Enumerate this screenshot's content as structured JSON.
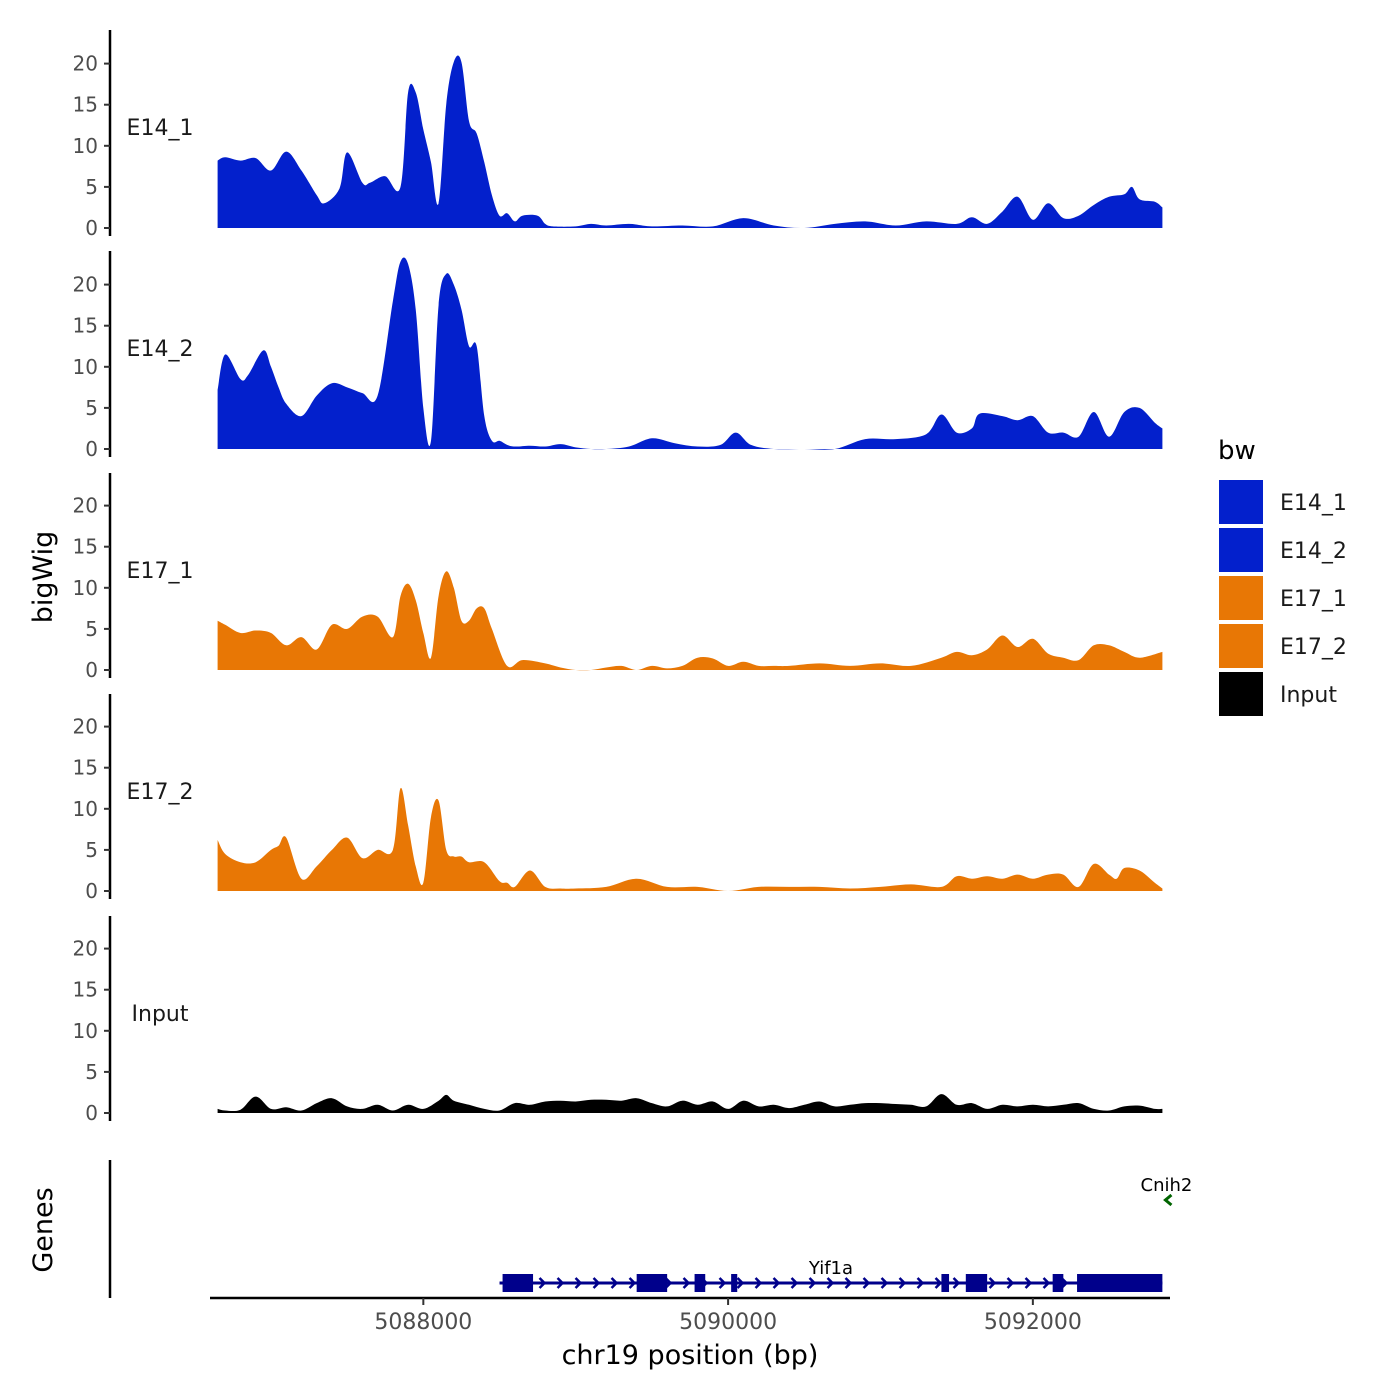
{
  "chart_data": {
    "type": "area",
    "title": "",
    "xlabel": "chr19 position (bp)",
    "ylabel_tracks": "bigWig",
    "ylabel_genes": "Genes",
    "xlim": [
      5086600,
      5092900
    ],
    "x_ticks": [
      5088000,
      5090000,
      5092000
    ],
    "x_tick_labels": [
      "5088000",
      "5090000",
      "5092000"
    ],
    "ylim": [
      0,
      24
    ],
    "y_ticks": [
      0,
      5,
      10,
      15,
      20
    ],
    "y_tick_labels": [
      "0",
      "5",
      "10",
      "15",
      "20"
    ],
    "legend": {
      "title": "bw",
      "placement": "right",
      "entries": [
        {
          "name": "E14_1",
          "color": "#0320CC"
        },
        {
          "name": "E14_2",
          "color": "#0320CC"
        },
        {
          "name": "E17_1",
          "color": "#E87705"
        },
        {
          "name": "E17_2",
          "color": "#E87705"
        },
        {
          "name": "Input",
          "color": "#000000"
        }
      ]
    },
    "series": [
      {
        "name": "E14_1",
        "color": "#0320CC",
        "x": [
          5086650,
          5086700,
          5086800,
          5086900,
          5087000,
          5087100,
          5087200,
          5087300,
          5087350,
          5087450,
          5087500,
          5087600,
          5087650,
          5087750,
          5087850,
          5087900,
          5087950,
          5088000,
          5088050,
          5088100,
          5088150,
          5088200,
          5088250,
          5088300,
          5088350,
          5088400,
          5088450,
          5088500,
          5088550,
          5088600,
          5088650,
          5088750,
          5088800,
          5088850,
          5089000,
          5089100,
          5089200,
          5089350,
          5089500,
          5089700,
          5089900,
          5090100,
          5090300,
          5090500,
          5090700,
          5090900,
          5091100,
          5091300,
          5091500,
          5091600,
          5091700,
          5091800,
          5091900,
          5092000,
          5092100,
          5092200,
          5092300,
          5092400,
          5092500,
          5092600,
          5092650,
          5092700,
          5092800,
          5092850
        ],
        "values": [
          8.2,
          8.6,
          8.2,
          8.5,
          7,
          9.3,
          7,
          4,
          3,
          4.8,
          9.2,
          5.5,
          5.5,
          6.3,
          5,
          16.5,
          16.5,
          12,
          8,
          3,
          15,
          20.2,
          20.2,
          13,
          11.5,
          8,
          4,
          1.5,
          1.8,
          0.8,
          1.5,
          1.5,
          0.5,
          0.2,
          0.2,
          0.5,
          0.3,
          0.5,
          0.2,
          0.3,
          0.2,
          1.2,
          0.3,
          0,
          0.5,
          0.8,
          0.3,
          0.8,
          0.5,
          1.3,
          0.5,
          2,
          3.8,
          1,
          3,
          1.2,
          1.5,
          2.8,
          3.8,
          4.1,
          5,
          3.5,
          3.2,
          2.5
        ]
      },
      {
        "name": "E14_2",
        "color": "#0320CC",
        "x": [
          5086650,
          5086700,
          5086800,
          5086850,
          5086950,
          5087000,
          5087050,
          5087100,
          5087200,
          5087300,
          5087400,
          5087500,
          5087600,
          5087700,
          5087800,
          5087850,
          5087900,
          5087950,
          5088000,
          5088050,
          5088100,
          5088150,
          5088200,
          5088250,
          5088300,
          5088350,
          5088400,
          5088450,
          5088500,
          5088550,
          5088600,
          5088700,
          5088800,
          5088900,
          5089000,
          5089100,
          5089200,
          5089350,
          5089500,
          5089650,
          5089800,
          5089950,
          5090050,
          5090150,
          5090300,
          5090500,
          5090700,
          5090900,
          5091100,
          5091300,
          5091400,
          5091500,
          5091600,
          5091650,
          5091800,
          5091900,
          5092000,
          5092100,
          5092200,
          5092300,
          5092400,
          5092500,
          5092600,
          5092700,
          5092800,
          5092850
        ],
        "values": [
          7.2,
          11.5,
          8.5,
          9,
          12,
          10,
          7.5,
          5.5,
          4,
          6.5,
          8,
          7.5,
          6.8,
          6.5,
          18,
          22.8,
          22.5,
          17,
          5,
          1,
          17.5,
          21.3,
          20,
          17,
          12.5,
          12.5,
          4,
          1,
          1,
          0.5,
          0.3,
          0.4,
          0.3,
          0.6,
          0.2,
          0,
          0,
          0.3,
          1.3,
          0.7,
          0.3,
          0.5,
          2,
          0.5,
          0,
          0,
          0,
          1.2,
          1.2,
          1.8,
          4.2,
          2,
          2.5,
          4.3,
          4,
          3.5,
          4,
          2,
          2,
          1.5,
          4.5,
          1.5,
          4.5,
          5,
          3.2,
          2.5
        ]
      },
      {
        "name": "E17_1",
        "color": "#E87705",
        "x": [
          5086650,
          5086700,
          5086800,
          5086900,
          5087000,
          5087100,
          5087200,
          5087300,
          5087400,
          5087500,
          5087600,
          5087700,
          5087800,
          5087850,
          5087900,
          5087950,
          5088000,
          5088050,
          5088100,
          5088150,
          5088200,
          5088250,
          5088300,
          5088350,
          5088400,
          5088450,
          5088550,
          5088650,
          5088800,
          5088900,
          5089000,
          5089100,
          5089200,
          5089300,
          5089400,
          5089500,
          5089600,
          5089700,
          5089800,
          5089900,
          5090000,
          5090100,
          5090200,
          5090300,
          5090400,
          5090600,
          5090800,
          5091000,
          5091200,
          5091400,
          5091500,
          5091600,
          5091700,
          5091800,
          5091900,
          5092000,
          5092100,
          5092200,
          5092300,
          5092400,
          5092500,
          5092600,
          5092700,
          5092850
        ],
        "values": [
          6,
          5.5,
          4.5,
          4.8,
          4.5,
          3,
          4,
          2.5,
          5.5,
          5,
          6.5,
          6.5,
          4,
          9,
          10.5,
          8.5,
          4.5,
          1.5,
          9,
          12,
          10,
          6,
          6,
          7.5,
          7.5,
          5,
          0.5,
          1.2,
          0.8,
          0.3,
          0,
          0,
          0.3,
          0.5,
          0,
          0.5,
          0.2,
          0.5,
          1.5,
          1.4,
          0.5,
          1,
          0.5,
          0.5,
          0.5,
          0.8,
          0.5,
          0.8,
          0.5,
          1.5,
          2.2,
          1.8,
          2.5,
          4.2,
          2.8,
          3.8,
          2,
          1.5,
          1.2,
          3,
          3,
          2.2,
          1.5,
          2.2
        ]
      },
      {
        "name": "E17_2",
        "color": "#E87705",
        "x": [
          5086650,
          5086700,
          5086800,
          5086900,
          5087000,
          5087050,
          5087100,
          5087200,
          5087300,
          5087400,
          5087500,
          5087600,
          5087700,
          5087800,
          5087850,
          5087900,
          5087950,
          5088000,
          5088050,
          5088100,
          5088150,
          5088200,
          5088250,
          5088300,
          5088400,
          5088500,
          5088550,
          5088600,
          5088700,
          5088800,
          5088900,
          5089000,
          5089200,
          5089400,
          5089600,
          5089800,
          5090000,
          5090200,
          5090400,
          5090600,
          5090800,
          5091000,
          5091200,
          5091400,
          5091500,
          5091600,
          5091700,
          5091800,
          5091900,
          5092000,
          5092100,
          5092200,
          5092300,
          5092400,
          5092500,
          5092550,
          5092600,
          5092700,
          5092800,
          5092850
        ],
        "values": [
          6.2,
          4.5,
          3.5,
          3.5,
          5,
          5.5,
          6.5,
          1.5,
          3,
          5,
          6.5,
          4,
          5,
          5,
          12.5,
          8,
          3,
          1,
          9,
          11,
          5,
          4.2,
          4.2,
          3.5,
          3.5,
          1.2,
          1,
          0.5,
          2.5,
          0.5,
          0.3,
          0.3,
          0.5,
          1.5,
          0.5,
          0.5,
          0,
          0.5,
          0.5,
          0.5,
          0.3,
          0.5,
          0.8,
          0.5,
          1.8,
          1.5,
          1.8,
          1.5,
          2,
          1.5,
          2,
          2,
          0.5,
          3.3,
          2,
          1.5,
          2.8,
          2.5,
          1,
          0.3
        ]
      },
      {
        "name": "Input",
        "color": "#000000",
        "x": [
          5086650,
          5086700,
          5086800,
          5086900,
          5087000,
          5087100,
          5087200,
          5087300,
          5087400,
          5087500,
          5087600,
          5087700,
          5087800,
          5087900,
          5088000,
          5088100,
          5088150,
          5088200,
          5088300,
          5088400,
          5088500,
          5088600,
          5088700,
          5088800,
          5088900,
          5089000,
          5089100,
          5089200,
          5089300,
          5089400,
          5089500,
          5089600,
          5089700,
          5089800,
          5089900,
          5090000,
          5090100,
          5090200,
          5090300,
          5090400,
          5090500,
          5090600,
          5090700,
          5090800,
          5090900,
          5091000,
          5091100,
          5091200,
          5091300,
          5091400,
          5091500,
          5091600,
          5091700,
          5091800,
          5091900,
          5092000,
          5092100,
          5092200,
          5092300,
          5092400,
          5092500,
          5092600,
          5092700,
          5092800,
          5092850
        ],
        "values": [
          0.5,
          0.3,
          0.4,
          2,
          0.5,
          0.7,
          0.3,
          1.2,
          1.8,
          0.8,
          0.5,
          1,
          0.3,
          1,
          0.5,
          1.5,
          2.2,
          1.5,
          1,
          0.5,
          0.3,
          1.2,
          1,
          1.4,
          1.5,
          1.4,
          1.6,
          1.6,
          1.5,
          1.8,
          1.2,
          0.8,
          1.5,
          1,
          1.4,
          0.5,
          1.5,
          0.8,
          1,
          0.6,
          1,
          1.4,
          0.8,
          1,
          1.2,
          1.2,
          1.1,
          1,
          0.8,
          2.3,
          1,
          1.2,
          0.5,
          1,
          0.8,
          1,
          0.8,
          1,
          1.2,
          0.5,
          0.3,
          0.8,
          0.9,
          0.5,
          0.5
        ]
      }
    ],
    "genes": [
      {
        "name": "Yif1a",
        "strand": "+",
        "color": "#00008B",
        "start": 5088500,
        "end": 5092850,
        "exons": [
          [
            5088520,
            5088720
          ],
          [
            5089400,
            5089600
          ],
          [
            5089780,
            5089850
          ],
          [
            5090020,
            5090060
          ],
          [
            5091400,
            5091450
          ],
          [
            5091560,
            5091700
          ],
          [
            5092130,
            5092200
          ],
          [
            5092290,
            5092850
          ]
        ]
      },
      {
        "name": "Cnih2",
        "strand": "-",
        "color": "#006400",
        "start": 5092870,
        "end": 5092900,
        "exons": []
      }
    ]
  }
}
